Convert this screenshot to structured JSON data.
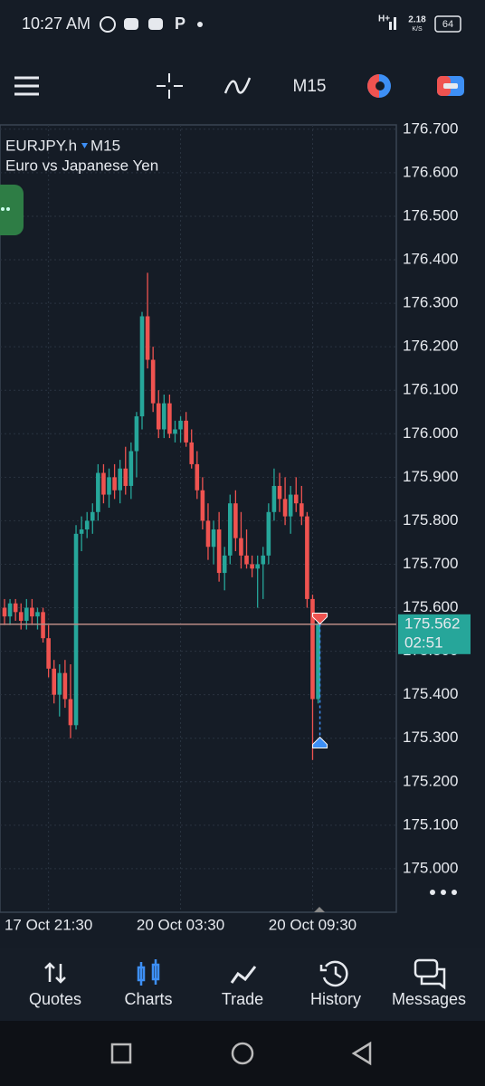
{
  "status_bar": {
    "time": "10:27 AM",
    "network": "H+",
    "speed": "2.18",
    "speed_unit": "K/S",
    "battery": "64"
  },
  "toolbar": {
    "timeframe": "M15"
  },
  "chart_data": {
    "type": "candlestick",
    "symbol": "EURJPY.h",
    "timeframe": "M15",
    "description": "Euro vs Japanese Yen",
    "categories": [
      null,
      null,
      null,
      null,
      null,
      null,
      null,
      null,
      "17 Oct 21:30",
      null,
      null,
      null,
      null,
      null,
      null,
      null,
      null,
      null,
      null,
      null,
      null,
      null,
      null,
      null,
      null,
      null,
      null,
      null,
      null,
      null,
      null,
      null,
      "20 Oct 03:30",
      null,
      null,
      null,
      null,
      null,
      null,
      null,
      null,
      null,
      null,
      null,
      null,
      null,
      null,
      null,
      null,
      null,
      null,
      null,
      null,
      null,
      null,
      null,
      "20 Oct 09:30",
      null
    ],
    "open": [
      175.6,
      175.58,
      175.61,
      175.59,
      175.57,
      175.6,
      175.58,
      175.59,
      175.53,
      175.46,
      175.4,
      175.45,
      175.39,
      175.33,
      175.77,
      175.78,
      175.8,
      175.82,
      175.91,
      175.86,
      175.9,
      175.87,
      175.92,
      175.88,
      175.96,
      176.04,
      176.27,
      176.17,
      176.07,
      176.01,
      176.07,
      176.0,
      176.01,
      176.03,
      175.98,
      175.93,
      175.87,
      175.8,
      175.74,
      175.78,
      175.68,
      175.72,
      175.84,
      175.76,
      175.72,
      175.7,
      175.69,
      175.7,
      175.72,
      175.82,
      175.88,
      175.85,
      175.81,
      175.86,
      175.84,
      175.81,
      175.62,
      175.39
    ],
    "high": [
      175.62,
      175.62,
      175.62,
      175.61,
      175.62,
      175.62,
      175.6,
      175.6,
      175.56,
      175.48,
      175.47,
      175.48,
      175.47,
      175.79,
      175.81,
      175.82,
      175.84,
      175.93,
      175.93,
      175.92,
      175.93,
      175.94,
      175.97,
      175.98,
      176.05,
      176.28,
      176.37,
      176.2,
      176.1,
      176.09,
      176.09,
      176.03,
      176.04,
      176.05,
      176.01,
      175.96,
      175.9,
      175.84,
      175.8,
      175.82,
      175.74,
      175.86,
      175.87,
      175.82,
      175.78,
      175.72,
      175.72,
      175.74,
      175.84,
      175.92,
      175.91,
      175.9,
      175.88,
      175.9,
      175.88,
      175.82,
      175.63,
      175.57
    ],
    "low": [
      175.56,
      175.56,
      175.57,
      175.55,
      175.55,
      175.56,
      175.55,
      175.52,
      175.44,
      175.38,
      175.35,
      175.37,
      175.3,
      175.32,
      175.73,
      175.76,
      175.77,
      175.8,
      175.84,
      175.83,
      175.85,
      175.84,
      175.86,
      175.85,
      175.9,
      176.01,
      176.15,
      176.05,
      175.99,
      175.99,
      175.99,
      175.98,
      175.98,
      175.97,
      175.92,
      175.85,
      175.78,
      175.71,
      175.7,
      175.66,
      175.64,
      175.7,
      175.73,
      175.69,
      175.69,
      175.67,
      175.6,
      175.62,
      175.7,
      175.8,
      175.82,
      175.79,
      175.77,
      175.82,
      175.79,
      175.6,
      175.25,
      175.38
    ],
    "close": [
      175.58,
      175.61,
      175.59,
      175.57,
      175.6,
      175.58,
      175.59,
      175.53,
      175.46,
      175.4,
      175.45,
      175.39,
      175.33,
      175.77,
      175.78,
      175.8,
      175.82,
      175.91,
      175.86,
      175.9,
      175.87,
      175.92,
      175.88,
      175.96,
      176.04,
      176.27,
      176.17,
      176.07,
      176.01,
      176.07,
      176.0,
      176.01,
      176.03,
      175.98,
      175.93,
      175.87,
      175.8,
      175.74,
      175.78,
      175.68,
      175.72,
      175.84,
      175.76,
      175.72,
      175.7,
      175.69,
      175.7,
      175.72,
      175.82,
      175.88,
      175.85,
      175.81,
      175.86,
      175.84,
      175.81,
      175.62,
      175.39,
      175.562
    ],
    "up_color": "#26a69a",
    "down_color": "#ef5350",
    "ylim": [
      174.9,
      176.71
    ],
    "yticks": [
      {
        "value": 175.0,
        "label": "175.000"
      },
      {
        "value": 175.1,
        "label": "175.100"
      },
      {
        "value": 175.2,
        "label": "175.200"
      },
      {
        "value": 175.3,
        "label": "175.300"
      },
      {
        "value": 175.4,
        "label": "175.400"
      },
      {
        "value": 175.5,
        "label": "175.500"
      },
      {
        "value": 175.6,
        "label": "175.600"
      },
      {
        "value": 175.7,
        "label": "175.700"
      },
      {
        "value": 175.8,
        "label": "175.800"
      },
      {
        "value": 175.9,
        "label": "175.900"
      },
      {
        "value": 176.0,
        "label": "176.000"
      },
      {
        "value": 176.1,
        "label": "176.100"
      },
      {
        "value": 176.2,
        "label": "176.200"
      },
      {
        "value": 176.3,
        "label": "176.300"
      },
      {
        "value": 176.4,
        "label": "176.400"
      },
      {
        "value": 176.5,
        "label": "176.500"
      },
      {
        "value": 176.6,
        "label": "176.600"
      },
      {
        "value": 176.7,
        "label": "176.700"
      }
    ],
    "grid": true,
    "current_price": 175.562,
    "countdown": "02:51",
    "trade_markers": [
      175.575,
      175.29
    ]
  },
  "nav": {
    "items": [
      "Quotes",
      "Charts",
      "Trade",
      "History",
      "Messages"
    ],
    "active": 1
  }
}
